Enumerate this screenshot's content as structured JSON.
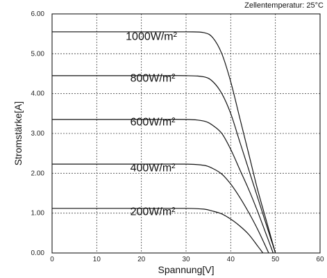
{
  "chart_data": {
    "type": "line",
    "annotation": "Zellentemperatur: 25°C",
    "xlabel": "Spannung[V]",
    "ylabel": "Stromstärke[A]",
    "xlim": [
      0,
      60
    ],
    "ylim": [
      0,
      6
    ],
    "x_ticks": [
      0,
      10,
      20,
      30,
      40,
      50,
      60
    ],
    "x_tick_labels": [
      "0",
      "10",
      "20",
      "30",
      "40",
      "50",
      "60"
    ],
    "y_ticks": [
      0,
      1,
      2,
      3,
      4,
      5,
      6
    ],
    "y_tick_labels": [
      "0.00",
      "1.00",
      "2.00",
      "3.00",
      "4.00",
      "5.00",
      "6.00"
    ],
    "grid": true,
    "series": [
      {
        "name": "1000W/m²",
        "x": [
          0,
          20,
          30,
          34,
          36,
          38,
          40,
          42,
          44,
          46,
          48,
          49,
          50
        ],
        "y": [
          5.55,
          5.55,
          5.55,
          5.53,
          5.4,
          5.0,
          4.3,
          3.4,
          2.5,
          1.6,
          0.8,
          0.4,
          0.0
        ]
      },
      {
        "name": "800W/m²",
        "x": [
          0,
          20,
          30,
          34,
          36,
          38,
          40,
          42,
          44,
          46,
          48,
          49,
          50
        ],
        "y": [
          4.45,
          4.45,
          4.45,
          4.42,
          4.3,
          4.0,
          3.5,
          2.8,
          2.1,
          1.4,
          0.7,
          0.35,
          0.0
        ]
      },
      {
        "name": "600W/m²",
        "x": [
          0,
          20,
          30,
          34,
          36,
          38,
          40,
          42,
          44,
          46,
          48,
          49.5
        ],
        "y": [
          3.35,
          3.35,
          3.35,
          3.31,
          3.2,
          3.0,
          2.6,
          2.1,
          1.6,
          1.05,
          0.45,
          0.0
        ]
      },
      {
        "name": "400W/m²",
        "x": [
          0,
          20,
          30,
          34,
          36,
          38,
          40,
          42,
          44,
          46,
          48.5
        ],
        "y": [
          2.23,
          2.23,
          2.23,
          2.2,
          2.12,
          1.98,
          1.73,
          1.4,
          1.02,
          0.6,
          0.0
        ]
      },
      {
        "name": "200W/m²",
        "x": [
          0,
          20,
          30,
          34,
          36,
          38,
          40,
          42,
          44,
          46,
          47.2
        ],
        "y": [
          1.12,
          1.12,
          1.12,
          1.1,
          1.05,
          0.98,
          0.85,
          0.68,
          0.47,
          0.18,
          0.0
        ]
      }
    ],
    "series_label_anchors": [
      {
        "x": 16.5,
        "y": 5.35
      },
      {
        "x": 17.5,
        "y": 4.3
      },
      {
        "x": 17.5,
        "y": 3.2
      },
      {
        "x": 17.5,
        "y": 2.05
      },
      {
        "x": 17.5,
        "y": 0.95
      }
    ],
    "colors": {
      "line": "#111111",
      "grid": "#444444",
      "axis": "#000000"
    }
  }
}
